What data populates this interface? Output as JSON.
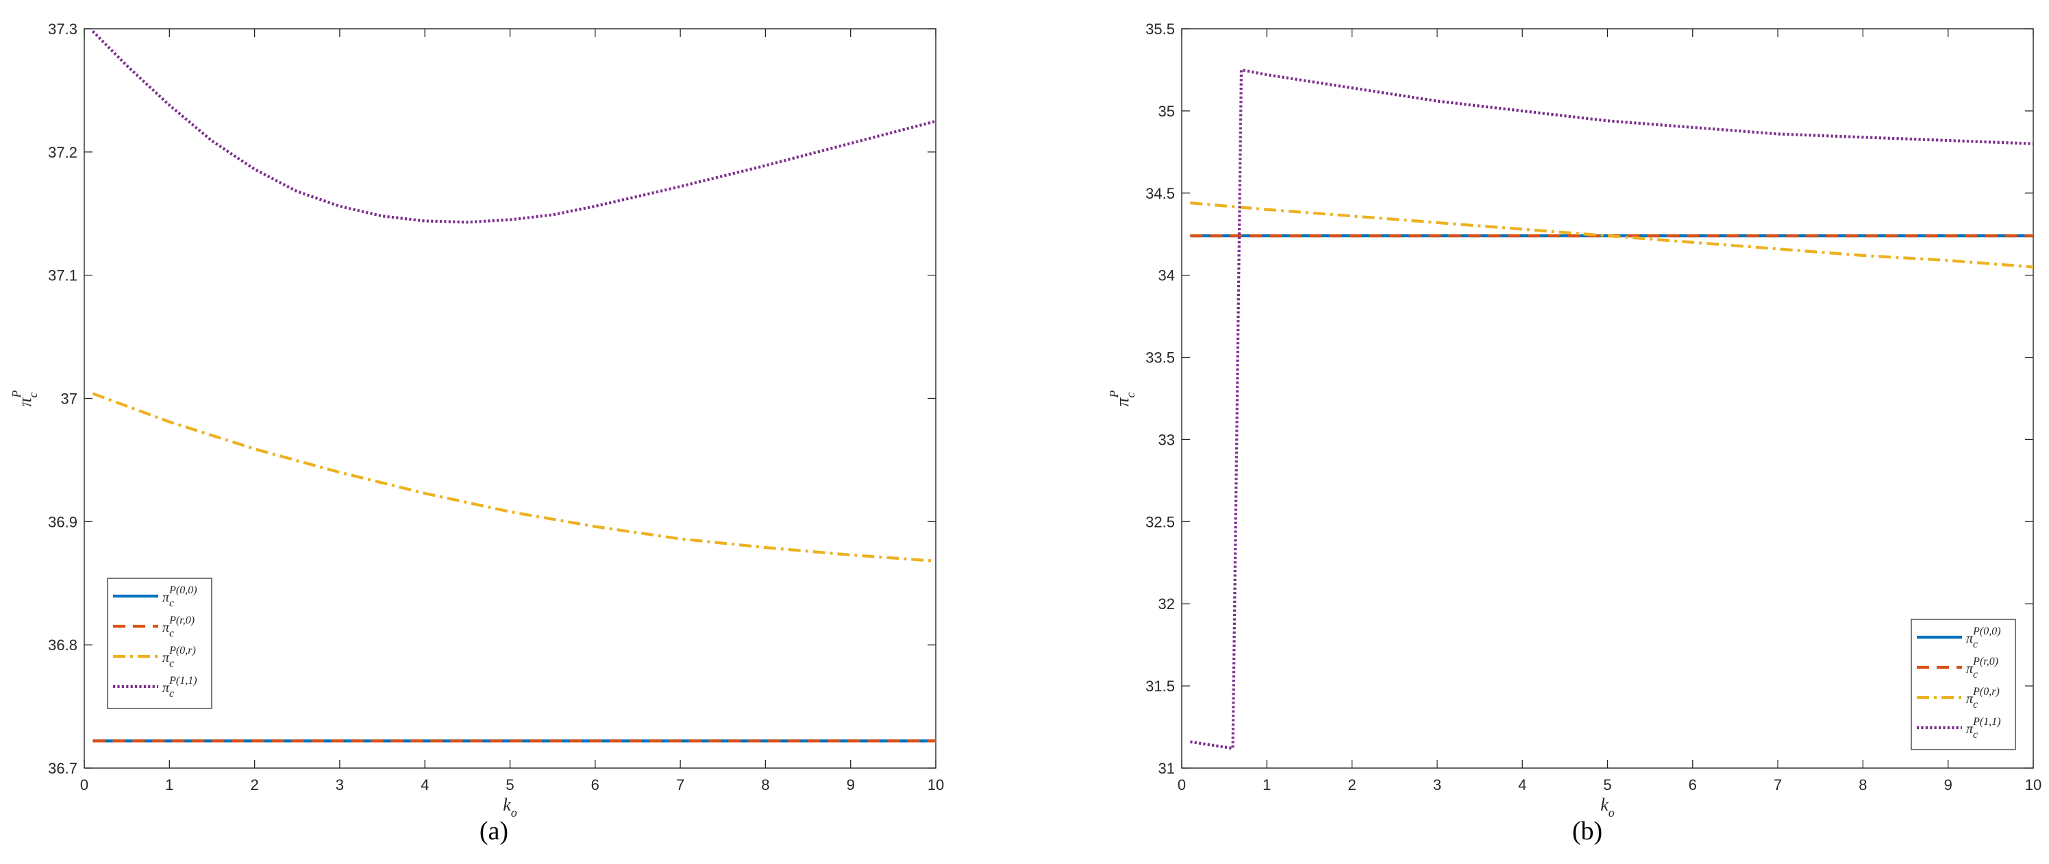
{
  "colors": {
    "series_1": "#0072BD",
    "series_2": "#D95319",
    "series_3": "#EDB120",
    "series_4": "#7E2F8E",
    "axes": "#262626"
  },
  "chart_data": [
    {
      "type": "line",
      "panel_label": "(a)",
      "xlabel": {
        "symbol": "k",
        "subscript": "o"
      },
      "ylabel": {
        "symbol": "π",
        "subscript": "c",
        "superscript": "P"
      },
      "xlim": [
        0,
        10
      ],
      "ylim": [
        36.7,
        37.3
      ],
      "xticks": [
        "0",
        "1",
        "2",
        "3",
        "4",
        "5",
        "6",
        "7",
        "8",
        "9",
        "10"
      ],
      "yticks": [
        "36.7",
        "36.8",
        "36.9",
        "37",
        "37.1",
        "37.2",
        "37.3"
      ],
      "grid": false,
      "legend_position": "lower-left",
      "series": [
        {
          "symbol": "π",
          "subscript": "c",
          "superscript": "P(0,0)",
          "style": "solid",
          "color": "#0072BD",
          "x": [
            0.1,
            10
          ],
          "y": [
            36.722,
            36.722
          ]
        },
        {
          "symbol": "π",
          "subscript": "c",
          "superscript": "P(r,0)",
          "style": "dashed",
          "color": "#D95319",
          "x": [
            0.1,
            10
          ],
          "y": [
            36.722,
            36.722
          ]
        },
        {
          "symbol": "π",
          "subscript": "c",
          "superscript": "P(0,r)",
          "style": "dashdot",
          "color": "#EDB120",
          "x": [
            0.1,
            1,
            2,
            3,
            4,
            5,
            6,
            7,
            8,
            9,
            10
          ],
          "y": [
            37.004,
            36.981,
            36.959,
            36.94,
            36.923,
            36.908,
            36.896,
            36.886,
            36.879,
            36.873,
            36.868
          ]
        },
        {
          "symbol": "π",
          "subscript": "c",
          "superscript": "P(1,1)",
          "style": "dotted",
          "color": "#7E2F8E",
          "x": [
            0.1,
            0.5,
            1,
            1.5,
            2,
            2.5,
            3,
            3.5,
            4,
            4.5,
            5,
            5.5,
            6,
            7,
            8,
            9,
            10
          ],
          "y": [
            37.298,
            37.27,
            37.238,
            37.209,
            37.186,
            37.168,
            37.156,
            37.148,
            37.144,
            37.143,
            37.145,
            37.149,
            37.156,
            37.172,
            37.189,
            37.207,
            37.225
          ]
        }
      ]
    },
    {
      "type": "line",
      "panel_label": "(b)",
      "xlabel": {
        "symbol": "k",
        "subscript": "o"
      },
      "ylabel": {
        "symbol": "π",
        "subscript": "c",
        "superscript": "P"
      },
      "xlim": [
        0,
        10
      ],
      "ylim": [
        31,
        35.5
      ],
      "xticks": [
        "0",
        "1",
        "2",
        "3",
        "4",
        "5",
        "6",
        "7",
        "8",
        "9",
        "10"
      ],
      "yticks": [
        "31",
        "31.5",
        "32",
        "32.5",
        "33",
        "33.5",
        "34",
        "34.5",
        "35",
        "35.5"
      ],
      "grid": false,
      "legend_position": "lower-right",
      "series": [
        {
          "symbol": "π",
          "subscript": "c",
          "superscript": "P(0,0)",
          "style": "solid",
          "color": "#0072BD",
          "x": [
            0.1,
            10
          ],
          "y": [
            34.24,
            34.24
          ]
        },
        {
          "symbol": "π",
          "subscript": "c",
          "superscript": "P(r,0)",
          "style": "dashed",
          "color": "#D95319",
          "x": [
            0.1,
            10
          ],
          "y": [
            34.24,
            34.24
          ]
        },
        {
          "symbol": "π",
          "subscript": "c",
          "superscript": "P(0,r)",
          "style": "dashdot",
          "color": "#EDB120",
          "x": [
            0.1,
            1,
            2,
            3,
            4,
            5,
            6,
            7,
            8,
            9,
            10
          ],
          "y": [
            34.44,
            34.4,
            34.36,
            34.32,
            34.28,
            34.24,
            34.2,
            34.16,
            34.12,
            34.09,
            34.05
          ]
        },
        {
          "symbol": "π",
          "subscript": "c",
          "superscript": "P(1,1)",
          "style": "dotted",
          "color": "#7E2F8E",
          "x": [
            0.1,
            0.6,
            0.7,
            1,
            2,
            3,
            4,
            5,
            6,
            7,
            8,
            9,
            10
          ],
          "y": [
            31.16,
            31.12,
            35.25,
            35.22,
            35.14,
            35.06,
            35.0,
            34.94,
            34.9,
            34.86,
            34.84,
            34.82,
            34.8
          ]
        }
      ]
    }
  ]
}
